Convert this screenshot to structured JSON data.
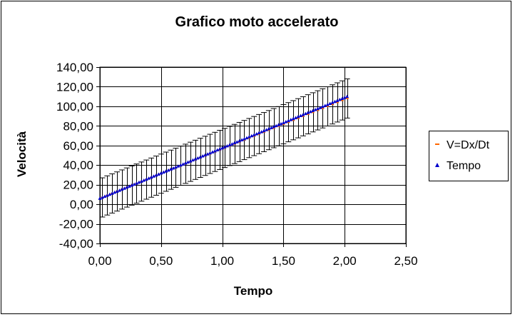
{
  "chart_data": {
    "type": "scatter",
    "title": "Grafico moto accelerato",
    "xlabel": "Tempo",
    "ylabel": "Velocità",
    "xlim": [
      0,
      2.5
    ],
    "ylim": [
      -40,
      140
    ],
    "x_ticks": [
      "0,00",
      "0,50",
      "1,00",
      "1,50",
      "2,00",
      "2,50"
    ],
    "y_ticks": [
      "140,00",
      "120,00",
      "100,00",
      "80,00",
      "60,00",
      "40,00",
      "20,00",
      "0,00",
      "-20,00",
      "-40,00"
    ],
    "x_tick_values": [
      0,
      0.5,
      1,
      1.5,
      2,
      2.5
    ],
    "y_tick_values": [
      140,
      120,
      100,
      80,
      60,
      40,
      20,
      0,
      -20,
      -40
    ],
    "grid": true,
    "legend_position": "right",
    "series": [
      {
        "name": "V=Dx/Dt",
        "color": "#ff6600",
        "marker": "dash",
        "x_start": 0.02,
        "x_end": 2.0,
        "x_step": 0.04,
        "y_start": 7,
        "y_end": 108,
        "error": 20
      },
      {
        "name": "Tempo",
        "color": "#0000cc",
        "marker": "triangle",
        "x_start": 0.0,
        "x_end": 2.02,
        "x_step": 0.02,
        "y_start": 6,
        "y_end": 110
      }
    ]
  }
}
